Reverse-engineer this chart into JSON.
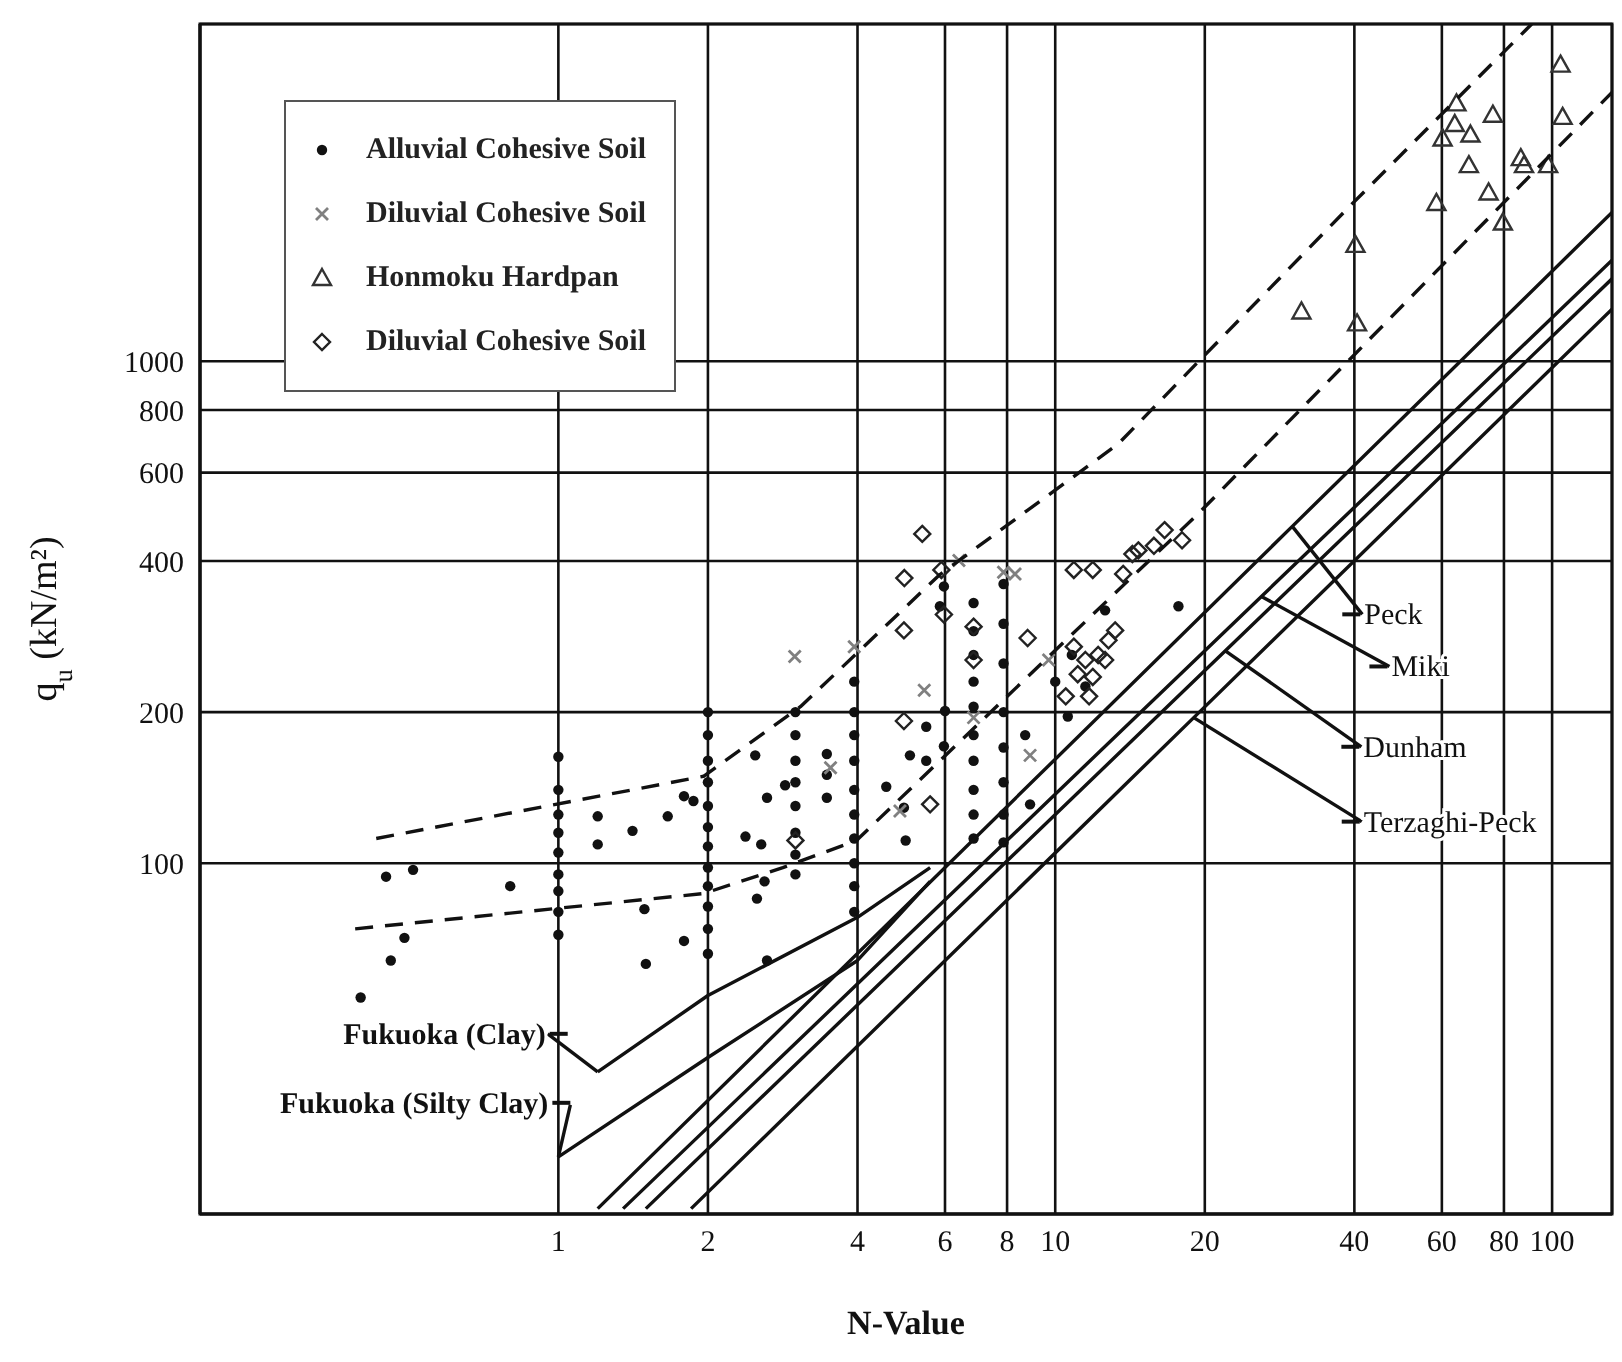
{
  "chart_data": {
    "type": "scatter",
    "xlabel": "N-Value",
    "ylabel": "q$_{u}$ (kN/m²)",
    "log": "xy",
    "grid": true,
    "legend": "top left",
    "xlim": [
      0.19,
      132
    ],
    "xticks": [
      1,
      2,
      4,
      6,
      8,
      10,
      20,
      40,
      60,
      80,
      100
    ],
    "ylim": [
      20,
      4700
    ],
    "yticks": [
      100,
      200,
      400,
      600,
      800,
      1000
    ],
    "series": [
      {
        "name": "Alluvial Cohesive Soil",
        "type": "scatter",
        "marker": "circle",
        "color": "#111111",
        "x": [
          0.45,
          0.51,
          0.8,
          0.49,
          0.46,
          0.4,
          1,
          1,
          1,
          1,
          1,
          1,
          1,
          1,
          1,
          1.2,
          1.2,
          1.41,
          1.66,
          1.79,
          1.87,
          1.49,
          1.79,
          1.5,
          2,
          2,
          2,
          2,
          2,
          2,
          2,
          2,
          2,
          2,
          2,
          2,
          2.38,
          2.49,
          2.51,
          2.56,
          2.6,
          2.63,
          2.63,
          2.86,
          3,
          3,
          3,
          3,
          3,
          3,
          3,
          3,
          3.47,
          3.47,
          3.47,
          3.94,
          3.94,
          3.94,
          3.94,
          3.94,
          3.94,
          3.94,
          3.94,
          3.94,
          3.94,
          4.57,
          4.96,
          5,
          5.1,
          5.5,
          5.5,
          5.97,
          6,
          5.86,
          5.97,
          6.85,
          6.85,
          6.85,
          6.85,
          6.85,
          6.85,
          6.85,
          6.85,
          6.85,
          6.85,
          7.87,
          7.87,
          7.87,
          7.87,
          7.87,
          7.87,
          7.87,
          7.87,
          8.7,
          8.9,
          10.6,
          12.6,
          17.7,
          10,
          10.8,
          11.5
        ],
        "values": [
          94,
          97,
          90,
          71,
          64,
          54,
          163,
          140,
          125,
          115,
          105,
          95,
          88,
          80,
          72,
          124,
          109,
          116,
          124,
          136,
          133,
          81,
          70,
          63,
          200,
          180,
          160,
          145,
          130,
          118,
          108,
          98,
          90,
          82,
          74,
          66,
          113,
          164,
          85,
          109,
          92,
          135,
          64,
          143,
          200,
          180,
          160,
          145,
          130,
          115,
          104,
          95,
          165,
          150,
          135,
          230,
          200,
          180,
          160,
          140,
          125,
          112,
          100,
          90,
          80,
          142,
          129,
          111,
          164,
          187,
          160,
          171,
          201,
          325,
          356,
          330,
          290,
          260,
          230,
          205,
          180,
          160,
          140,
          125,
          112,
          360,
          300,
          250,
          200,
          170,
          145,
          125,
          110,
          180,
          131,
          196,
          319,
          325,
          230,
          260,
          225
        ]
      },
      {
        "name": "Diluvial Cohesive Soil",
        "type": "scatter",
        "marker": "cross",
        "color": "#808080",
        "x": [
          2.99,
          5.45,
          6.4,
          8.3,
          8.9,
          4.87,
          3.53,
          9.7,
          3.94,
          7.87,
          6.85
        ],
        "values": [
          258,
          221,
          401,
          377,
          164,
          127,
          155,
          254,
          270,
          380,
          195
        ]
      },
      {
        "name": "Honmoku Hardpan",
        "type": "scatter",
        "marker": "triangle",
        "color": "#333333",
        "x": [
          31.3,
          40.2,
          40.5,
          58.5,
          60.2,
          64.2,
          63.7,
          68.5,
          68,
          74.5,
          76,
          79.6,
          86.5,
          87.8,
          98.2,
          104,
          105
        ],
        "values": [
          1257,
          1706,
          1190,
          2068,
          2780,
          3265,
          2970,
          2830,
          2460,
          2170,
          3100,
          1890,
          2540,
          2460,
          2460,
          3900,
          3070
        ]
      },
      {
        "name": "Diluvial Cohesive Soil",
        "type": "scatter",
        "marker": "diamond",
        "color": "#222222",
        "x": [
          5.4,
          4.97,
          5.9,
          5.97,
          4.96,
          6.85,
          8.8,
          6.85,
          4.96,
          3,
          5.6,
          10.9,
          11.9,
          13.7,
          14.7,
          15.8,
          10.9,
          11.5,
          12.2,
          12.8,
          11.1,
          11.9,
          12.6,
          10.5,
          11.7,
          13.2,
          14.3,
          16.6,
          18
        ],
        "values": [
          453,
          370,
          384,
          313,
          291,
          296,
          281,
          254,
          192,
          111,
          131,
          384,
          384,
          377,
          420,
          429,
          270,
          254,
          260,
          278,
          238,
          235,
          254,
          215,
          215,
          291,
          413,
          461,
          440
        ]
      },
      {
        "type": "line",
        "line_style": "dashed",
        "color": "#111111",
        "x": [
          0.43,
          1.96,
          3.07,
          5.86,
          13.4,
          39.4,
          91
        ],
        "values": [
          112,
          149,
          205,
          376,
          685,
          2050,
          4700
        ]
      },
      {
        "type": "line",
        "line_style": "dashed",
        "color": "#111111",
        "x": [
          0.39,
          1.96,
          2.83,
          3.98,
          19.4,
          132
        ],
        "values": [
          74,
          87,
          98,
          111,
          497,
          3435
        ]
      },
      {
        "name": "Peck",
        "type": "line",
        "line_style": "solid",
        "color": "#111111",
        "x": [
          1.2,
          30,
          132
        ],
        "values": [
          20.5,
          469,
          1980
        ]
      },
      {
        "name": "Miki",
        "type": "line",
        "line_style": "solid",
        "color": "#111111",
        "x": [
          1.35,
          26,
          132
        ],
        "values": [
          20.5,
          340,
          1590
        ]
      },
      {
        "name": "Dunham",
        "type": "line",
        "line_style": "solid",
        "color": "#111111",
        "x": [
          1.5,
          22,
          132
        ],
        "values": [
          20.5,
          265,
          1460
        ]
      },
      {
        "name": "Terzaghi-Peck",
        "type": "line",
        "line_style": "solid",
        "color": "#111111",
        "x": [
          1.85,
          19,
          132
        ],
        "values": [
          20.5,
          195,
          1270
        ]
      },
      {
        "name": "Fukuoka (Clay)",
        "type": "line",
        "line_style": "solid",
        "color": "#111111",
        "x": [
          1.2,
          2,
          4,
          5.6
        ],
        "values": [
          38.4,
          54.5,
          78,
          98
        ]
      },
      {
        "name": "Fukuoka (Silty Clay)",
        "type": "line",
        "line_style": "solid",
        "color": "#111111",
        "x": [
          1,
          2,
          4,
          5.6
        ],
        "values": [
          26,
          41,
          64,
          92
        ]
      }
    ]
  }
}
